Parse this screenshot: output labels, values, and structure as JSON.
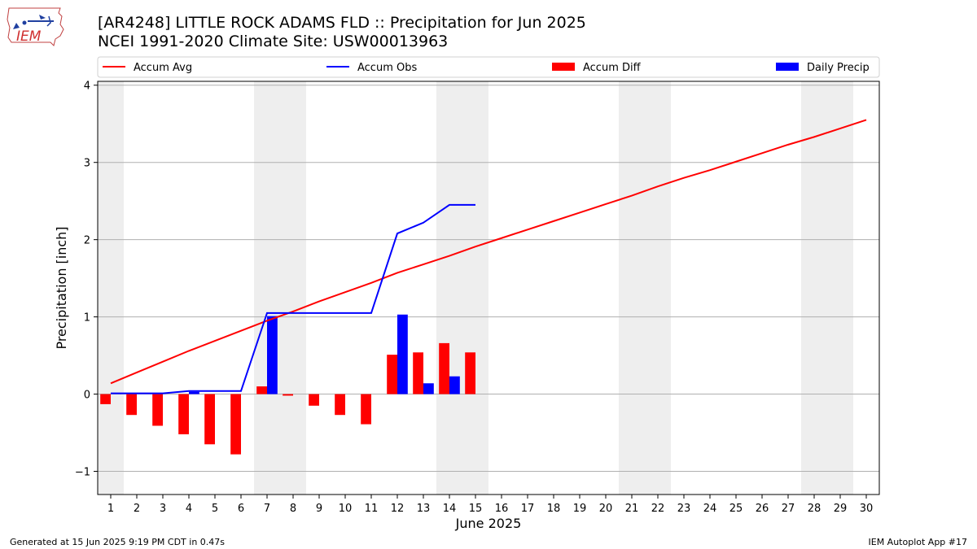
{
  "header": {
    "title": "[AR4248] LITTLE ROCK ADAMS FLD :: Precipitation for Jun 2025",
    "subtitle": "NCEI 1991-2020 Climate Site: USW00013963",
    "logo_text": "IEM"
  },
  "footer": {
    "generated": "Generated at 15 Jun 2025 9:19 PM CDT in 0.47s",
    "app": "IEM Autoplot App #17"
  },
  "colors": {
    "accum_avg": "#ff0000",
    "accum_obs": "#0000ff",
    "accum_diff": "#ff0000",
    "daily_precip": "#0000ff",
    "weekend_shade": "#eeeeee",
    "grid": "#b0b0b0"
  },
  "chart_data": {
    "type": "bar",
    "xlabel": "June 2025",
    "ylabel": "Precipitation [inch]",
    "ylim": [
      -1.3,
      4.05
    ],
    "yticks": [
      -1,
      0,
      1,
      2,
      3,
      4
    ],
    "ytick_labels": [
      "−1",
      "0",
      "1",
      "2",
      "3",
      "4"
    ],
    "xlim": [
      0.5,
      30.5
    ],
    "x": [
      1,
      2,
      3,
      4,
      5,
      6,
      7,
      8,
      9,
      10,
      11,
      12,
      13,
      14,
      15,
      16,
      17,
      18,
      19,
      20,
      21,
      22,
      23,
      24,
      25,
      26,
      27,
      28,
      29,
      30
    ],
    "x_tick_labels": [
      "1",
      "2",
      "3",
      "4",
      "5",
      "6",
      "7",
      "8",
      "9",
      "10",
      "11",
      "12",
      "13",
      "14",
      "15",
      "16",
      "17",
      "18",
      "19",
      "20",
      "21",
      "22",
      "23",
      "24",
      "25",
      "26",
      "27",
      "28",
      "29",
      "30"
    ],
    "grid": "horizontal",
    "legend_position": "top",
    "weekend_shading_days": [
      [
        1,
        1
      ],
      [
        7,
        8
      ],
      [
        14,
        15
      ],
      [
        21,
        22
      ],
      [
        28,
        29
      ]
    ],
    "series": [
      {
        "name": "Accum Avg",
        "type": "line",
        "x": [
          1,
          2,
          3,
          4,
          5,
          6,
          7,
          8,
          9,
          10,
          11,
          12,
          13,
          14,
          15,
          16,
          17,
          18,
          19,
          20,
          21,
          22,
          23,
          24,
          25,
          26,
          27,
          28,
          29,
          30
        ],
        "values": [
          0.14,
          0.28,
          0.42,
          0.56,
          0.69,
          0.82,
          0.95,
          1.07,
          1.2,
          1.32,
          1.44,
          1.57,
          1.68,
          1.79,
          1.91,
          2.02,
          2.13,
          2.24,
          2.35,
          2.46,
          2.57,
          2.69,
          2.8,
          2.9,
          3.01,
          3.12,
          3.23,
          3.33,
          3.44,
          3.55
        ]
      },
      {
        "name": "Accum Obs",
        "type": "line",
        "x": [
          1,
          2,
          3,
          4,
          5,
          6,
          7,
          8,
          9,
          10,
          11,
          12,
          13,
          14,
          15
        ],
        "values": [
          0.01,
          0.01,
          0.01,
          0.04,
          0.04,
          0.04,
          1.05,
          1.05,
          1.05,
          1.05,
          1.05,
          2.08,
          2.22,
          2.45,
          2.45
        ]
      },
      {
        "name": "Accum Diff",
        "type": "bar",
        "x": [
          1,
          2,
          3,
          4,
          5,
          6,
          7,
          8,
          9,
          10,
          11,
          12,
          13,
          14,
          15
        ],
        "values": [
          -0.13,
          -0.27,
          -0.41,
          -0.52,
          -0.65,
          -0.78,
          0.1,
          -0.02,
          -0.15,
          -0.27,
          -0.39,
          0.51,
          0.54,
          0.66,
          0.54
        ]
      },
      {
        "name": "Daily Precip",
        "type": "bar",
        "x": [
          1,
          2,
          3,
          4,
          5,
          6,
          7,
          8,
          9,
          10,
          11,
          12,
          13,
          14,
          15
        ],
        "values": [
          0.01,
          0,
          0,
          0.03,
          0,
          0,
          1.01,
          0,
          0,
          0,
          0,
          1.03,
          0.14,
          0.23,
          0
        ]
      }
    ]
  }
}
